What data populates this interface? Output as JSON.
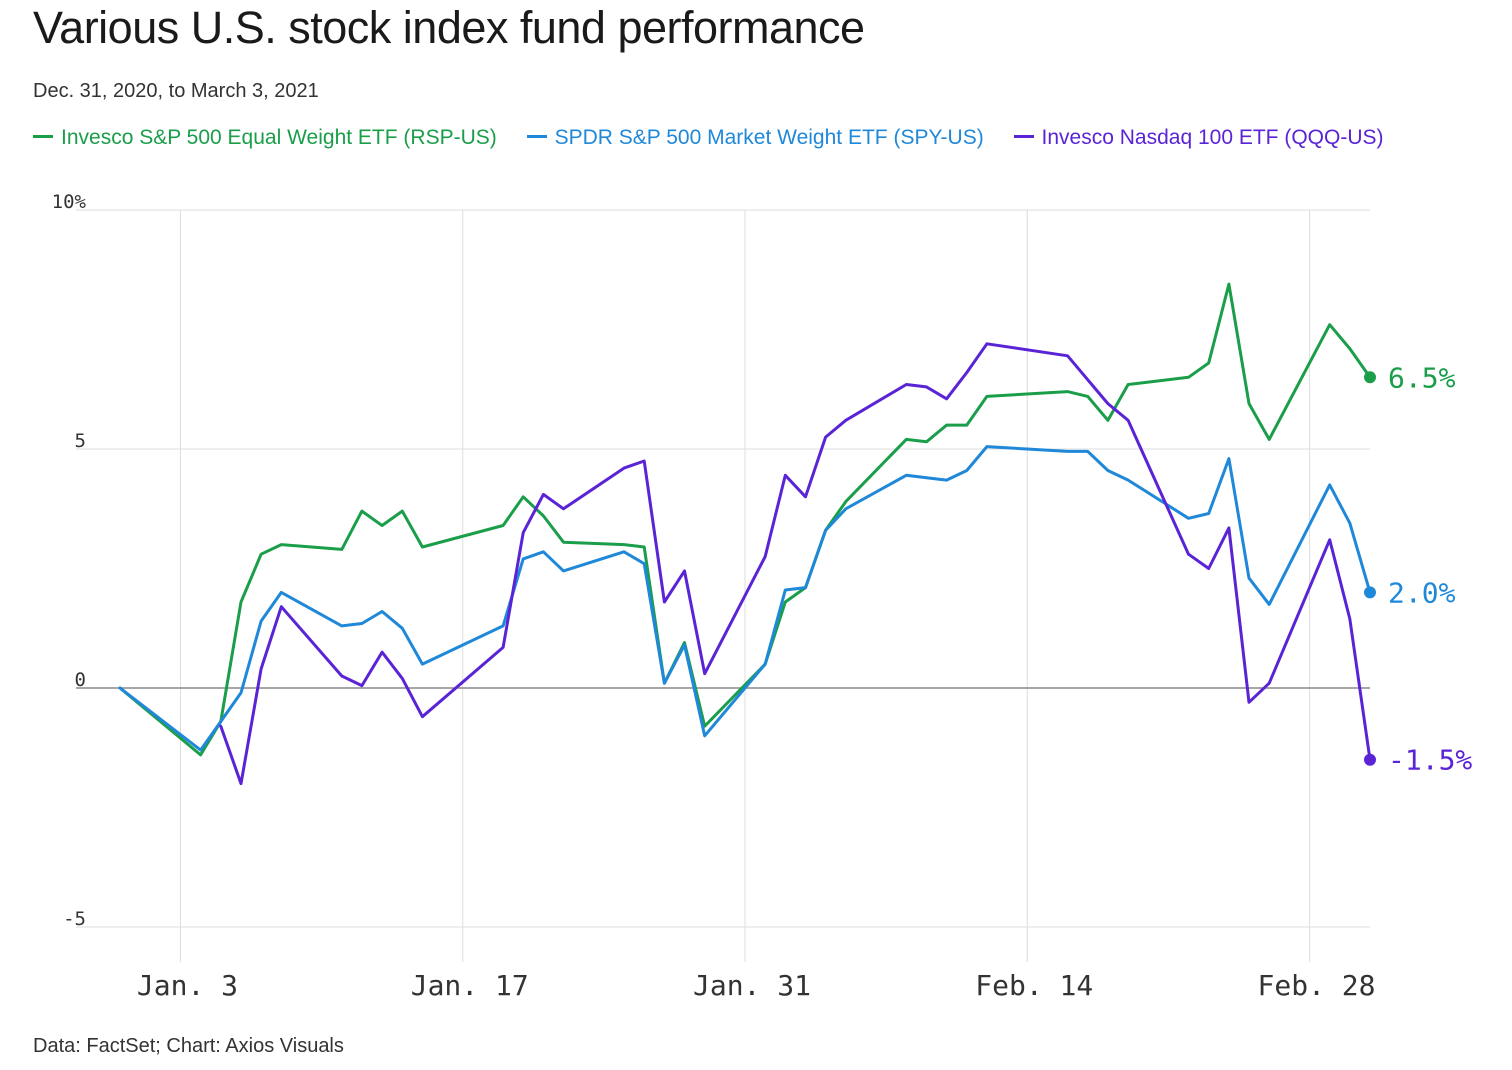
{
  "title": "Various U.S. stock index fund performance",
  "subtitle": "Dec. 31, 2020, to March 3, 2021",
  "source": "Data: FactSet; Chart: Axios Visuals",
  "colors": {
    "rsp": "#1a9e4a",
    "spy": "#1f88d9",
    "qqq": "#5a24d6",
    "grid": "#dddddd",
    "zero": "#888888"
  },
  "chart_data": {
    "type": "line",
    "xlabel": "",
    "ylabel": "",
    "ylim": [
      -5.5,
      10
    ],
    "grid": true,
    "legend_position": "top",
    "y_ticks": [
      {
        "value": 10,
        "label": "10%"
      },
      {
        "value": 5,
        "label": "5"
      },
      {
        "value": 0,
        "label": "0"
      },
      {
        "value": -5,
        "label": "-5"
      }
    ],
    "x_ticks": [
      {
        "date": "2021-01-03",
        "label": "Jan. 3"
      },
      {
        "date": "2021-01-17",
        "label": "Jan. 17"
      },
      {
        "date": "2021-01-31",
        "label": "Jan. 31"
      },
      {
        "date": "2021-02-14",
        "label": "Feb. 14"
      },
      {
        "date": "2021-02-28",
        "label": "Feb. 28"
      }
    ],
    "xlim": [
      "2020-12-31",
      "2021-03-04"
    ],
    "series": [
      {
        "name": "Invesco S&P 500 Equal Weight ETF (RSP-US)",
        "color": "#1a9e4a",
        "end_label": "6.5%",
        "points": [
          [
            "2020-12-31",
            0.0
          ],
          [
            "2021-01-04",
            -1.4
          ],
          [
            "2021-01-05",
            -0.7
          ],
          [
            "2021-01-06",
            1.8
          ],
          [
            "2021-01-07",
            2.8
          ],
          [
            "2021-01-08",
            3.0
          ],
          [
            "2021-01-11",
            2.9
          ],
          [
            "2021-01-12",
            3.7
          ],
          [
            "2021-01-13",
            3.4
          ],
          [
            "2021-01-14",
            3.7
          ],
          [
            "2021-01-15",
            2.95
          ],
          [
            "2021-01-19",
            3.4
          ],
          [
            "2021-01-20",
            4.0
          ],
          [
            "2021-01-21",
            3.6
          ],
          [
            "2021-01-22",
            3.05
          ],
          [
            "2021-01-25",
            3.0
          ],
          [
            "2021-01-26",
            2.95
          ],
          [
            "2021-01-27",
            0.1
          ],
          [
            "2021-01-28",
            0.95
          ],
          [
            "2021-01-29",
            -0.8
          ],
          [
            "2021-02-01",
            0.5
          ],
          [
            "2021-02-02",
            1.8
          ],
          [
            "2021-02-03",
            2.1
          ],
          [
            "2021-02-04",
            3.3
          ],
          [
            "2021-02-05",
            3.9
          ],
          [
            "2021-02-08",
            5.2
          ],
          [
            "2021-02-09",
            5.15
          ],
          [
            "2021-02-10",
            5.5
          ],
          [
            "2021-02-11",
            5.5
          ],
          [
            "2021-02-12",
            6.1
          ],
          [
            "2021-02-16",
            6.2
          ],
          [
            "2021-02-17",
            6.1
          ],
          [
            "2021-02-18",
            5.6
          ],
          [
            "2021-02-19",
            6.35
          ],
          [
            "2021-02-22",
            6.5
          ],
          [
            "2021-02-23",
            6.8
          ],
          [
            "2021-02-24",
            8.45
          ],
          [
            "2021-02-25",
            5.95
          ],
          [
            "2021-02-26",
            5.2
          ],
          [
            "2021-03-01",
            7.6
          ],
          [
            "2021-03-02",
            7.1
          ],
          [
            "2021-03-03",
            6.5
          ]
        ]
      },
      {
        "name": "SPDR S&P 500 Market Weight ETF (SPY-US)",
        "color": "#1f88d9",
        "end_label": "2.0%",
        "points": [
          [
            "2020-12-31",
            0.0
          ],
          [
            "2021-01-04",
            -1.3
          ],
          [
            "2021-01-05",
            -0.7
          ],
          [
            "2021-01-06",
            -0.1
          ],
          [
            "2021-01-07",
            1.4
          ],
          [
            "2021-01-08",
            2.0
          ],
          [
            "2021-01-11",
            1.3
          ],
          [
            "2021-01-12",
            1.35
          ],
          [
            "2021-01-13",
            1.6
          ],
          [
            "2021-01-14",
            1.25
          ],
          [
            "2021-01-15",
            0.5
          ],
          [
            "2021-01-19",
            1.3
          ],
          [
            "2021-01-20",
            2.7
          ],
          [
            "2021-01-21",
            2.85
          ],
          [
            "2021-01-22",
            2.45
          ],
          [
            "2021-01-25",
            2.85
          ],
          [
            "2021-01-26",
            2.6
          ],
          [
            "2021-01-27",
            0.1
          ],
          [
            "2021-01-28",
            0.9
          ],
          [
            "2021-01-29",
            -1.0
          ],
          [
            "2021-02-01",
            0.5
          ],
          [
            "2021-02-02",
            2.05
          ],
          [
            "2021-02-03",
            2.1
          ],
          [
            "2021-02-04",
            3.3
          ],
          [
            "2021-02-05",
            3.75
          ],
          [
            "2021-02-08",
            4.45
          ],
          [
            "2021-02-09",
            4.4
          ],
          [
            "2021-02-10",
            4.35
          ],
          [
            "2021-02-11",
            4.55
          ],
          [
            "2021-02-12",
            5.05
          ],
          [
            "2021-02-16",
            4.95
          ],
          [
            "2021-02-17",
            4.95
          ],
          [
            "2021-02-18",
            4.55
          ],
          [
            "2021-02-19",
            4.35
          ],
          [
            "2021-02-22",
            3.55
          ],
          [
            "2021-02-23",
            3.65
          ],
          [
            "2021-02-24",
            4.8
          ],
          [
            "2021-02-25",
            2.3
          ],
          [
            "2021-02-26",
            1.75
          ],
          [
            "2021-03-01",
            4.25
          ],
          [
            "2021-03-02",
            3.45
          ],
          [
            "2021-03-03",
            2.0
          ]
        ]
      },
      {
        "name": "Invesco Nasdaq 100 ETF (QQQ-US)",
        "color": "#5a24d6",
        "end_label": "-1.5%",
        "points": [
          [
            "2021-01-05",
            -0.8
          ],
          [
            "2021-01-06",
            -2.0
          ],
          [
            "2021-01-07",
            0.4
          ],
          [
            "2021-01-08",
            1.7
          ],
          [
            "2021-01-11",
            0.25
          ],
          [
            "2021-01-12",
            0.05
          ],
          [
            "2021-01-13",
            0.75
          ],
          [
            "2021-01-14",
            0.2
          ],
          [
            "2021-01-15",
            -0.6
          ],
          [
            "2021-01-19",
            0.85
          ],
          [
            "2021-01-20",
            3.25
          ],
          [
            "2021-01-21",
            4.05
          ],
          [
            "2021-01-22",
            3.75
          ],
          [
            "2021-01-25",
            4.6
          ],
          [
            "2021-01-26",
            4.75
          ],
          [
            "2021-01-27",
            1.8
          ],
          [
            "2021-01-28",
            2.45
          ],
          [
            "2021-01-29",
            0.3
          ],
          [
            "2021-02-01",
            2.75
          ],
          [
            "2021-02-02",
            4.45
          ],
          [
            "2021-02-03",
            4.0
          ],
          [
            "2021-02-04",
            5.25
          ],
          [
            "2021-02-05",
            5.6
          ],
          [
            "2021-02-08",
            6.35
          ],
          [
            "2021-02-09",
            6.3
          ],
          [
            "2021-02-10",
            6.05
          ],
          [
            "2021-02-11",
            6.6
          ],
          [
            "2021-02-12",
            7.2
          ],
          [
            "2021-02-16",
            6.95
          ],
          [
            "2021-02-17",
            6.45
          ],
          [
            "2021-02-18",
            5.95
          ],
          [
            "2021-02-19",
            5.6
          ],
          [
            "2021-02-22",
            2.8
          ],
          [
            "2021-02-23",
            2.5
          ],
          [
            "2021-02-24",
            3.35
          ],
          [
            "2021-02-25",
            -0.3
          ],
          [
            "2021-02-26",
            0.1
          ],
          [
            "2021-03-01",
            3.1
          ],
          [
            "2021-03-02",
            1.45
          ],
          [
            "2021-03-03",
            -1.5
          ]
        ]
      }
    ]
  }
}
